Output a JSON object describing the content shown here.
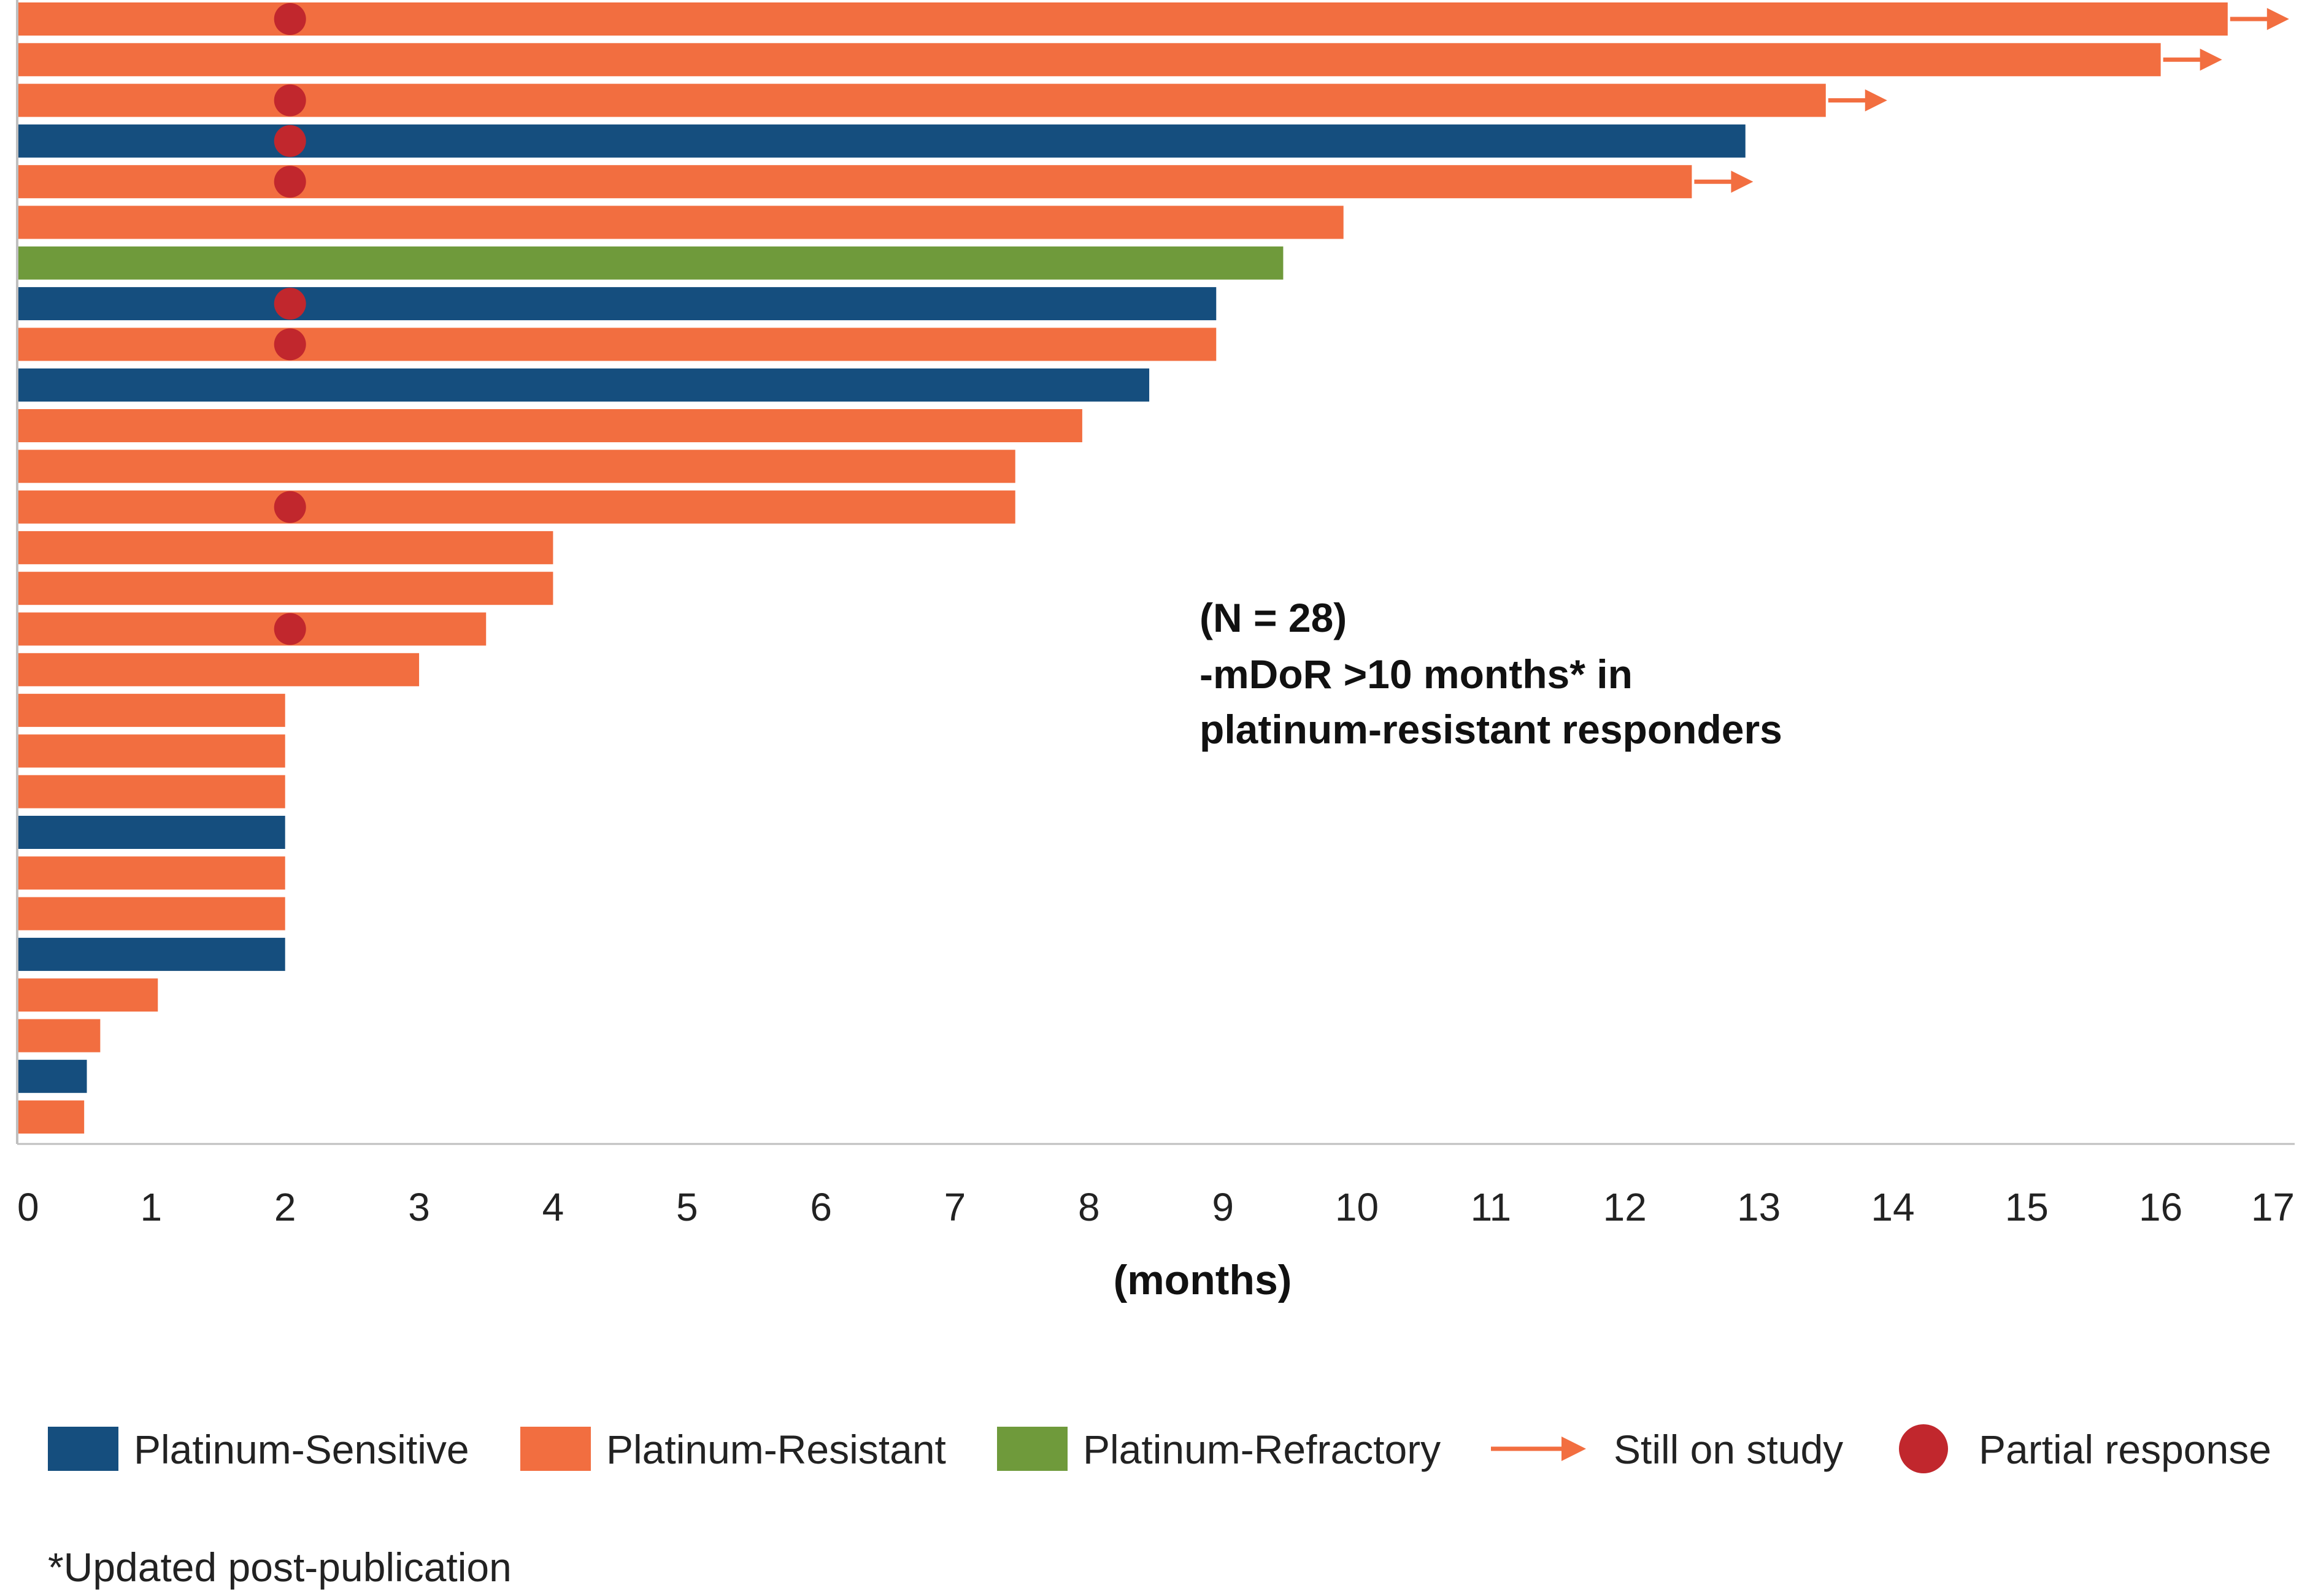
{
  "chart_data": {
    "type": "bar",
    "orientation": "horizontal",
    "title": "",
    "xlabel": "(months)",
    "ylabel": "",
    "xlim": [
      0,
      17
    ],
    "xticks": [
      "0",
      "1",
      "2",
      "3",
      "4",
      "5",
      "6",
      "7",
      "8",
      "9",
      "10",
      "11",
      "12",
      "13",
      "14",
      "15",
      "16",
      "17"
    ],
    "grid": false,
    "colors": {
      "sensitive": "#154E7E",
      "resistant": "#F26E40",
      "refractory": "#6F9A3B",
      "partial": "#C1272D",
      "axis": "#BFBFBF"
    },
    "patients": [
      {
        "months": 16.5,
        "group": "resistant",
        "partial_response": true,
        "ongoing": true
      },
      {
        "months": 16.0,
        "group": "resistant",
        "partial_response": false,
        "ongoing": true
      },
      {
        "months": 13.5,
        "group": "resistant",
        "partial_response": true,
        "ongoing": true
      },
      {
        "months": 12.9,
        "group": "sensitive",
        "partial_response": true,
        "ongoing": false
      },
      {
        "months": 12.5,
        "group": "resistant",
        "partial_response": true,
        "ongoing": true
      },
      {
        "months": 9.9,
        "group": "resistant",
        "partial_response": false,
        "ongoing": false
      },
      {
        "months": 9.45,
        "group": "refractory",
        "partial_response": false,
        "ongoing": false
      },
      {
        "months": 8.95,
        "group": "sensitive",
        "partial_response": true,
        "ongoing": false
      },
      {
        "months": 8.95,
        "group": "resistant",
        "partial_response": true,
        "ongoing": false
      },
      {
        "months": 8.45,
        "group": "sensitive",
        "partial_response": false,
        "ongoing": false
      },
      {
        "months": 7.95,
        "group": "resistant",
        "partial_response": false,
        "ongoing": false
      },
      {
        "months": 7.45,
        "group": "resistant",
        "partial_response": false,
        "ongoing": false
      },
      {
        "months": 7.45,
        "group": "resistant",
        "partial_response": true,
        "ongoing": false
      },
      {
        "months": 4.0,
        "group": "resistant",
        "partial_response": false,
        "ongoing": false
      },
      {
        "months": 4.0,
        "group": "resistant",
        "partial_response": false,
        "ongoing": false
      },
      {
        "months": 3.5,
        "group": "resistant",
        "partial_response": true,
        "ongoing": false
      },
      {
        "months": 3.0,
        "group": "resistant",
        "partial_response": false,
        "ongoing": false
      },
      {
        "months": 2.0,
        "group": "resistant",
        "partial_response": false,
        "ongoing": false
      },
      {
        "months": 2.0,
        "group": "resistant",
        "partial_response": false,
        "ongoing": false
      },
      {
        "months": 2.0,
        "group": "resistant",
        "partial_response": false,
        "ongoing": false
      },
      {
        "months": 2.0,
        "group": "sensitive",
        "partial_response": false,
        "ongoing": false
      },
      {
        "months": 2.0,
        "group": "resistant",
        "partial_response": false,
        "ongoing": false
      },
      {
        "months": 2.0,
        "group": "resistant",
        "partial_response": false,
        "ongoing": false
      },
      {
        "months": 2.0,
        "group": "sensitive",
        "partial_response": false,
        "ongoing": false
      },
      {
        "months": 1.05,
        "group": "resistant",
        "partial_response": false,
        "ongoing": false
      },
      {
        "months": 0.62,
        "group": "resistant",
        "partial_response": false,
        "ongoing": false
      },
      {
        "months": 0.52,
        "group": "sensitive",
        "partial_response": false,
        "ongoing": false
      },
      {
        "months": 0.5,
        "group": "resistant",
        "partial_response": false,
        "ongoing": false
      }
    ],
    "partial_response_month": 2.0,
    "annotation": [
      "(N = 28)",
      "-mDoR >10 months* in",
      "platinum-resistant responders"
    ],
    "legend": [
      {
        "key": "sensitive",
        "label": "Platinum-Sensitive",
        "kind": "box"
      },
      {
        "key": "resistant",
        "label": "Platinum-Resistant",
        "kind": "box"
      },
      {
        "key": "refractory",
        "label": "Platinum-Refractory",
        "kind": "box"
      },
      {
        "key": "ongoing",
        "label": "Still on study",
        "kind": "arrow"
      },
      {
        "key": "partial",
        "label": "Partial response",
        "kind": "dot"
      }
    ],
    "legend_position": "bottom",
    "footnote": "*Updated post-publication"
  }
}
